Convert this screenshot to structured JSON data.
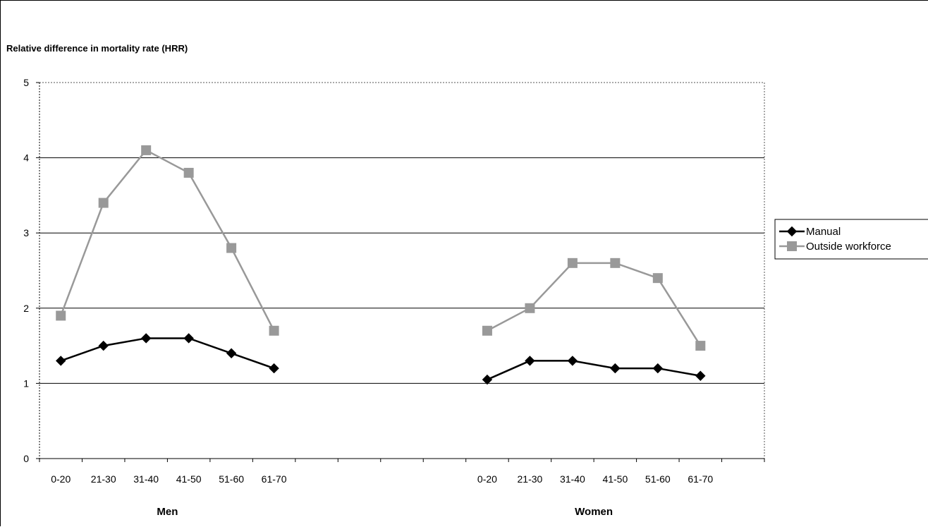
{
  "chart_data": {
    "type": "line",
    "ylabel": "Relative difference in mortality rate (HRR)",
    "ylim": [
      0,
      5
    ],
    "yticks": [
      "0",
      "1",
      "2",
      "3",
      "4",
      "5"
    ],
    "grid": true,
    "legend_position": "right",
    "groups": [
      {
        "label": "Men",
        "categories": [
          "0-20",
          "21-30",
          "31-40",
          "41-50",
          "51-60",
          "61-70"
        ],
        "series": [
          {
            "name": "Manual",
            "color": "#000000",
            "marker": "diamond",
            "values": [
              1.3,
              1.5,
              1.6,
              1.6,
              1.4,
              1.2
            ]
          },
          {
            "name": "Outside workforce",
            "color": "#999999",
            "marker": "square",
            "values": [
              1.9,
              3.4,
              4.1,
              3.8,
              2.8,
              1.7
            ]
          }
        ]
      },
      {
        "label": "Women",
        "categories": [
          "0-20",
          "21-30",
          "31-40",
          "41-50",
          "51-60",
          "61-70"
        ],
        "series": [
          {
            "name": "Manual",
            "color": "#000000",
            "marker": "diamond",
            "values": [
              1.05,
              1.3,
              1.3,
              1.2,
              1.2,
              1.1
            ]
          },
          {
            "name": "Outside workforce",
            "color": "#999999",
            "marker": "square",
            "values": [
              1.7,
              2.0,
              2.6,
              2.6,
              2.4,
              1.5
            ]
          }
        ]
      }
    ],
    "legend": [
      {
        "name": "Manual",
        "color": "#000000",
        "marker": "diamond"
      },
      {
        "name": "Outside workforce",
        "color": "#999999",
        "marker": "square"
      }
    ]
  }
}
